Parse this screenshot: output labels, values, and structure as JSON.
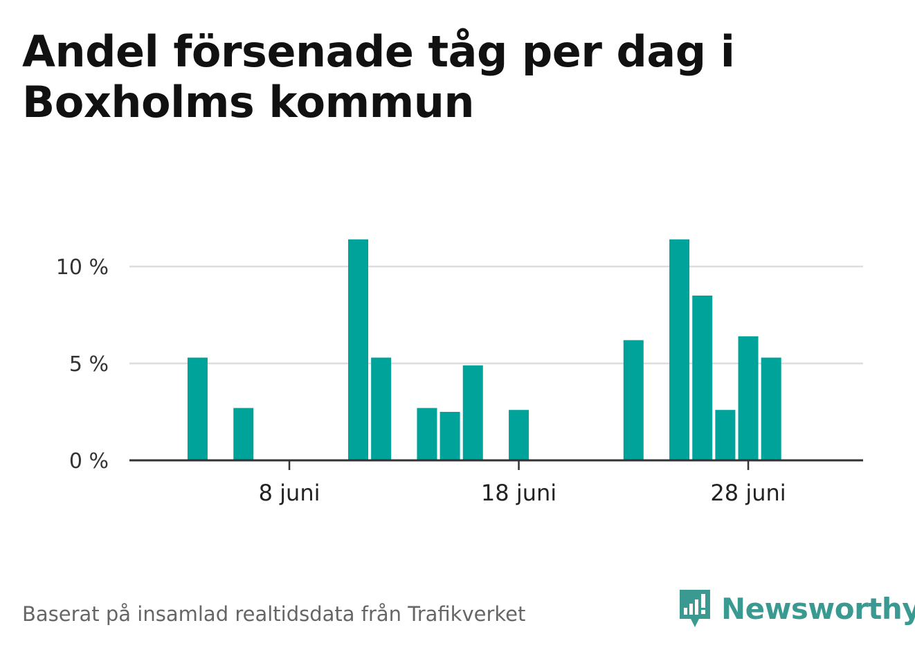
{
  "title": "Andel försenade tåg per dag i Boxholms kommun",
  "footer": {
    "source": "Baserat på insamlad realtidsdata från Trafikverket",
    "brand": "Newsworthy",
    "brand_icon": "bar-chart-speech-bubble-icon"
  },
  "colors": {
    "bar": "#00a39a",
    "grid": "#dddddd",
    "axis": "#333333",
    "brand": "#3a9a92"
  },
  "chart_data": {
    "type": "bar",
    "x_unit": "day of June",
    "x": [
      1,
      2,
      3,
      4,
      5,
      6,
      7,
      8,
      9,
      10,
      11,
      12,
      13,
      14,
      15,
      16,
      17,
      18,
      19,
      20,
      21,
      22,
      23,
      24,
      25,
      26,
      27,
      28,
      29,
      30
    ],
    "values": [
      0,
      0,
      0,
      5.3,
      0,
      2.7,
      0,
      0,
      0,
      0,
      11.4,
      5.3,
      0,
      2.7,
      2.5,
      4.9,
      0,
      2.6,
      0,
      0,
      0,
      0,
      6.2,
      0,
      11.4,
      8.5,
      2.6,
      6.4,
      5.3,
      0
    ],
    "ylim": [
      0,
      12
    ],
    "yticks": [
      0,
      5,
      10
    ],
    "ytick_labels": [
      "0 %",
      "5 %",
      "10 %"
    ],
    "xticks": [
      8,
      18,
      28
    ],
    "xtick_labels": [
      "8 juni",
      "18 juni",
      "28 juni"
    ],
    "grid": true,
    "xlabel": "",
    "ylabel": ""
  }
}
